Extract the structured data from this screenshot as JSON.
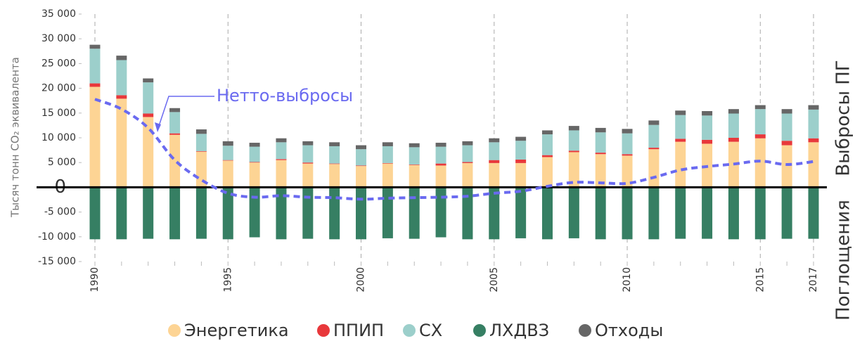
{
  "chart_data": {
    "type": "bar",
    "ylabel": "Тысяч тонн CO₂ эквивалента",
    "right_labels": [
      "Выбросы ПГ",
      "Поглощения"
    ],
    "categories": [
      "1990",
      null,
      null,
      null,
      null,
      "1995",
      null,
      null,
      null,
      null,
      "2000",
      null,
      null,
      null,
      null,
      "2005",
      null,
      null,
      null,
      null,
      "2010",
      null,
      null,
      null,
      null,
      "2015",
      null,
      "2017"
    ],
    "series": [
      {
        "name": "Энергетика",
        "color": "#fdd494",
        "values": [
          20300,
          17900,
          14200,
          10600,
          7200,
          5400,
          5000,
          5500,
          4800,
          4700,
          4300,
          4800,
          4500,
          4400,
          4900,
          4900,
          4900,
          6100,
          7100,
          6700,
          6400,
          7700,
          9200,
          8800,
          9200,
          9900,
          8500,
          9100
        ]
      },
      {
        "name": "ППИП",
        "color": "#e8383b",
        "values": [
          700,
          700,
          700,
          300,
          100,
          100,
          100,
          200,
          200,
          100,
          100,
          100,
          100,
          400,
          200,
          600,
          700,
          400,
          300,
          300,
          300,
          300,
          600,
          800,
          800,
          800,
          900,
          800
        ]
      },
      {
        "name": "СХ",
        "color": "#9ccfcb",
        "values": [
          7000,
          7100,
          6300,
          4300,
          3500,
          2900,
          3100,
          3400,
          3500,
          3500,
          3300,
          3400,
          3500,
          3400,
          3400,
          3600,
          3800,
          4200,
          4100,
          4100,
          4200,
          4600,
          4800,
          4900,
          4900,
          5100,
          5500,
          5800
        ]
      },
      {
        "name": "ЛХДВЗ",
        "color": "#367f63",
        "values": [
          -10500,
          -10500,
          -10400,
          -10500,
          -10400,
          -10500,
          -10100,
          -10500,
          -10400,
          -10500,
          -10500,
          -10300,
          -10400,
          -10100,
          -10500,
          -10500,
          -10300,
          -10500,
          -10300,
          -10500,
          -10500,
          -10500,
          -10400,
          -10400,
          -10500,
          -10500,
          -10400,
          -10400
        ]
      },
      {
        "name": "Отходы",
        "color": "#666666",
        "values": [
          800,
          900,
          800,
          800,
          900,
          900,
          800,
          800,
          800,
          800,
          800,
          800,
          800,
          800,
          800,
          800,
          800,
          800,
          900,
          900,
          900,
          900,
          900,
          900,
          900,
          800,
          900,
          900
        ]
      }
    ],
    "net": {
      "name": "Нетто-выбросы",
      "color": "#6a6af0",
      "values": [
        17800,
        15800,
        12000,
        5500,
        1500,
        -1200,
        -2000,
        -1700,
        -2000,
        -2100,
        -2400,
        -2200,
        -2100,
        -2000,
        -1800,
        -1200,
        -800,
        200,
        1000,
        900,
        800,
        2000,
        3500,
        4200,
        4700,
        5300,
        4600,
        5200
      ]
    },
    "ylim": [
      -15000,
      35000
    ],
    "yticks": [
      {
        "value": -15000,
        "label": "-15 000"
      },
      {
        "value": -10000,
        "label": "-10 000"
      },
      {
        "value": -5000,
        "label": "-5 000"
      },
      0,
      {
        "value": 5000,
        "label": "5 000"
      },
      {
        "value": 10000,
        "label": "10 000"
      },
      {
        "value": 15000,
        "label": "15 000"
      },
      {
        "value": 20000,
        "label": "20 000"
      },
      {
        "value": 25000,
        "label": "25 000"
      },
      {
        "value": 30000,
        "label": "30 000"
      },
      {
        "value": 35000,
        "label": "35 000"
      }
    ]
  }
}
